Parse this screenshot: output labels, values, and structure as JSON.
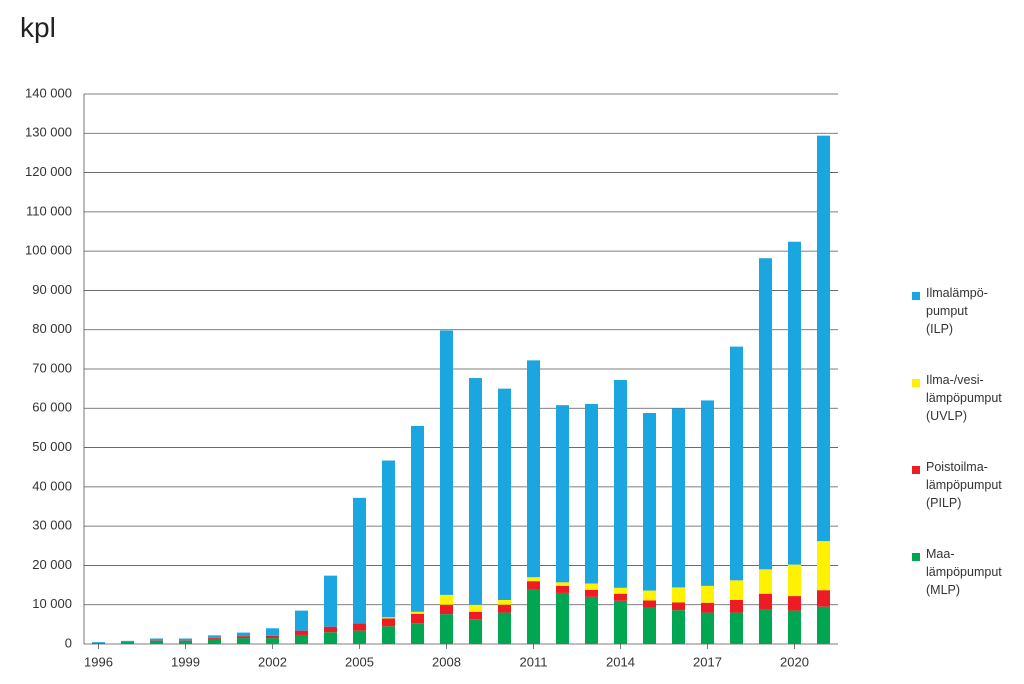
{
  "chart_data": {
    "type": "stacked_bar",
    "title": "kpl",
    "categories": [
      "1996",
      null,
      null,
      "1999",
      null,
      null,
      "2002",
      null,
      null,
      "2005",
      null,
      null,
      "2008",
      null,
      null,
      "2011",
      null,
      null,
      "2014",
      null,
      null,
      "2017",
      null,
      null,
      "2020",
      null
    ],
    "series": [
      {
        "name": "Maa-\nlämpöpumput\n(MLP)",
        "color": "#00a651",
        "values": [
          300,
          500,
          800,
          800,
          1300,
          1500,
          1500,
          2300,
          3000,
          3400,
          4500,
          5300,
          7600,
          6300,
          8000,
          14000,
          13000,
          12000,
          11000,
          9300,
          8600,
          8000,
          8000,
          8800,
          8500,
          9500
        ]
      },
      {
        "name": "Poistoilma-\nlämpöpumput\n(PILP)",
        "color": "#ed1c24",
        "values": [
          0,
          0,
          100,
          100,
          300,
          500,
          600,
          1100,
          1400,
          1800,
          2000,
          2400,
          2400,
          1900,
          2000,
          2000,
          1800,
          1800,
          1800,
          1800,
          2000,
          2500,
          3200,
          4000,
          3700,
          4200
        ]
      },
      {
        "name": "Ilma-/vesi-\nlämpöpumput\n(UVLP)",
        "color": "#fff200",
        "values": [
          0,
          0,
          0,
          0,
          0,
          0,
          0,
          0,
          0,
          0,
          300,
          500,
          2500,
          1800,
          1200,
          1000,
          900,
          1600,
          1500,
          2500,
          3800,
          4300,
          5000,
          6200,
          8000,
          12500
        ]
      },
      {
        "name": "Ilmalämpö-\npumput\n(ILP)",
        "color": "#1ba6e0",
        "values": [
          200,
          300,
          500,
          500,
          600,
          900,
          1900,
          5100,
          13000,
          32000,
          39900,
          47300,
          67300,
          57700,
          53800,
          55200,
          45100,
          45700,
          52900,
          45200,
          45600,
          47200,
          59500,
          79200,
          82200,
          103200
        ]
      }
    ],
    "ylim": [
      0,
      140000
    ],
    "yticks": [
      0,
      {
        "value": 10000,
        "label": "10 000"
      },
      {
        "value": 20000,
        "label": "20 000"
      },
      {
        "value": 30000,
        "label": "30 000"
      },
      {
        "value": 40000,
        "label": "40 000"
      },
      {
        "value": 50000,
        "label": "50 000"
      },
      {
        "value": 60000,
        "label": "60 000"
      },
      {
        "value": 70000,
        "label": "70 000"
      },
      {
        "value": 80000,
        "label": "80 000"
      },
      {
        "value": 90000,
        "label": "90 000"
      },
      {
        "value": 100000,
        "label": "100 000"
      },
      {
        "value": 110000,
        "label": "110 000"
      },
      {
        "value": 120000,
        "label": "120 000"
      },
      {
        "value": 130000,
        "label": "130 000"
      },
      {
        "value": 140000,
        "label": "140 000"
      }
    ],
    "grid": true,
    "legend": "right"
  }
}
